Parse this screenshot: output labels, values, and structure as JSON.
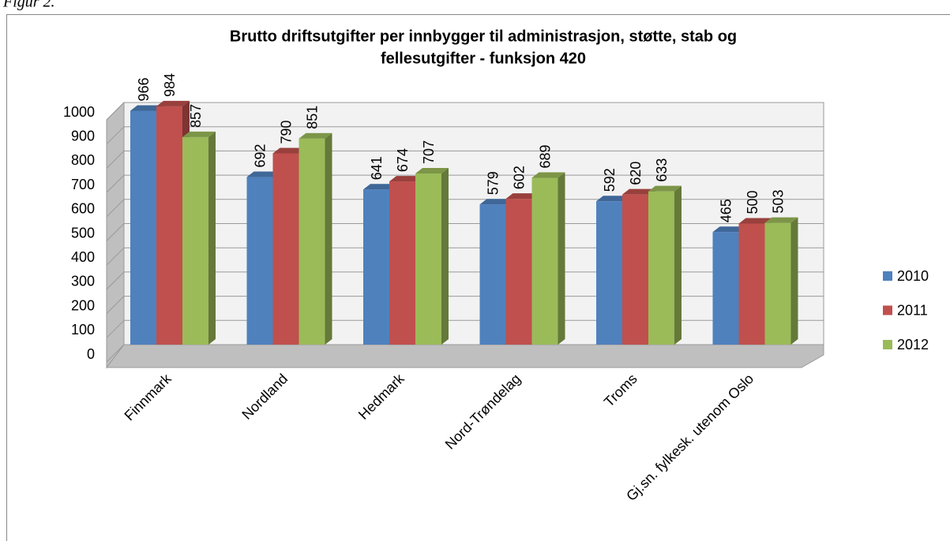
{
  "figure_label": "Figur 2.",
  "chart_data": {
    "type": "bar3d",
    "title": [
      "Brutto driftsutgifter per innbygger til administrasjon, støtte, stab og",
      "fellesutgifter - funksjon 420"
    ],
    "categories": [
      "Finnmark",
      "Nordland",
      "Hedmark",
      "Nord-Trøndelag",
      "Troms",
      "Gj.sn. fylkesk. utenom Oslo"
    ],
    "series": [
      {
        "name": "2010",
        "color": "#4f81bd",
        "values": [
          966,
          692,
          641,
          579,
          592,
          465
        ]
      },
      {
        "name": "2011",
        "color": "#c0504d",
        "values": [
          984,
          790,
          674,
          602,
          620,
          500
        ]
      },
      {
        "name": "2012",
        "color": "#9bbb59",
        "values": [
          857,
          851,
          707,
          689,
          633,
          503
        ]
      }
    ],
    "ylim": [
      0,
      1000
    ],
    "yticks": [
      0,
      100,
      200,
      300,
      400,
      500,
      600,
      700,
      800,
      900,
      1000
    ],
    "grid": true,
    "legend": "right"
  }
}
